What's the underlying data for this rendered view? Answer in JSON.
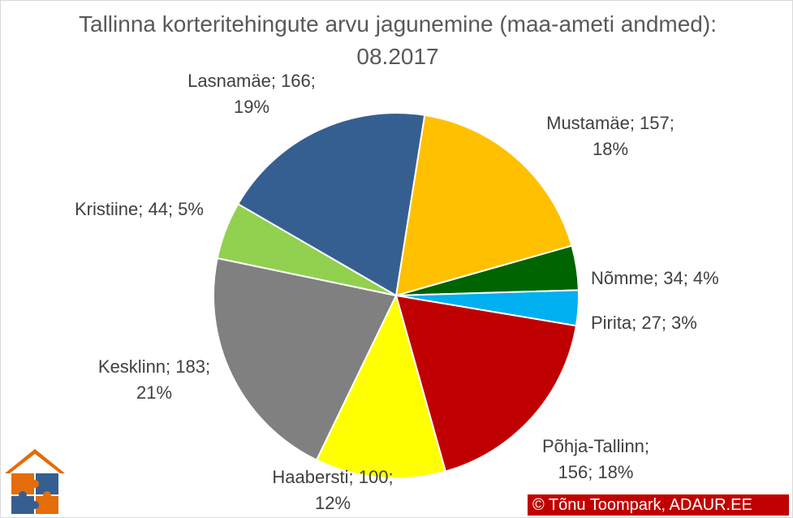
{
  "chart_data": {
    "type": "pie",
    "title": "Tallinna korteritehingute arvu jagunemine (maa-ameti andmed): 08.2017",
    "slices": [
      {
        "name": "Mustamäe",
        "value": 157,
        "percent": "18%",
        "color": "#ffc000",
        "label_lines": [
          "Mustamäe; 157;",
          "18%"
        ]
      },
      {
        "name": "Nõmme",
        "value": 34,
        "percent": "4%",
        "color": "#006400",
        "label_lines": [
          "Nõmme; 34; 4%"
        ]
      },
      {
        "name": "Pirita",
        "value": 27,
        "percent": "3%",
        "color": "#00b0f0",
        "label_lines": [
          "Pirita; 27; 3%"
        ]
      },
      {
        "name": "Põhja-Tallinn",
        "value": 156,
        "percent": "18%",
        "color": "#c00000",
        "label_lines": [
          "Põhja-Tallinn;",
          "156; 18%"
        ]
      },
      {
        "name": "Haabersti",
        "value": 100,
        "percent": "12%",
        "color": "#ffff00",
        "label_lines": [
          "Haabersti; 100;",
          "12%"
        ]
      },
      {
        "name": "Kesklinn",
        "value": 183,
        "percent": "21%",
        "color": "#808080",
        "label_lines": [
          "Kesklinn; 183;",
          "21%"
        ]
      },
      {
        "name": "Kristiine",
        "value": 44,
        "percent": "5%",
        "color": "#92d050",
        "label_lines": [
          "Kristiine; 44; 5%"
        ]
      },
      {
        "name": "Lasnamäe",
        "value": 166,
        "percent": "19%",
        "color": "#365f91",
        "label_lines": [
          "Lasnamäe; 166;",
          "19%"
        ]
      }
    ],
    "start_angle_deg": 9,
    "direction": "clockwise",
    "legend": "none",
    "data_labels": "outside"
  },
  "footer": {
    "credit": "© Tõnu Toompark, ADAUR.EE"
  }
}
